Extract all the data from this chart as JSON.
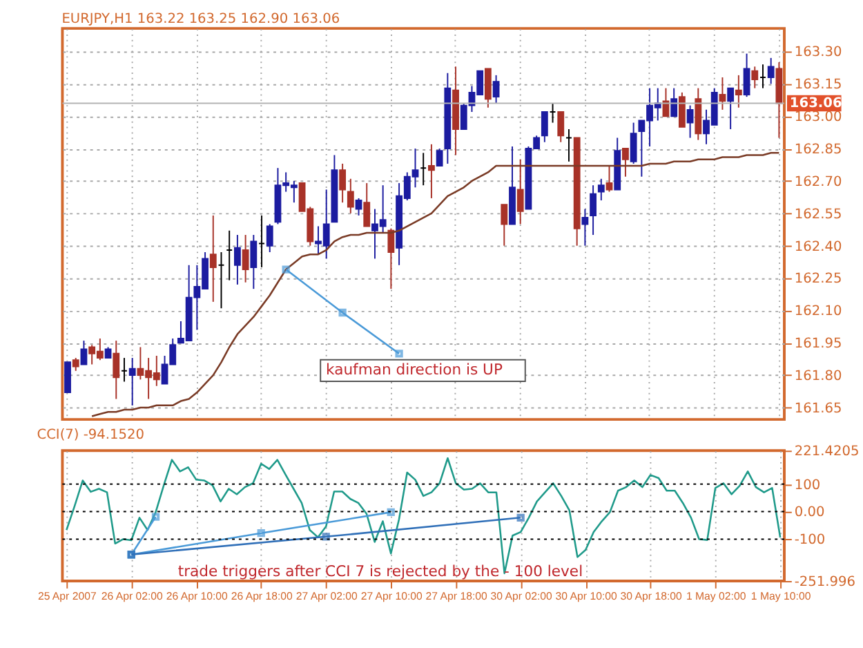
{
  "chart_data": [
    {
      "type": "candlestick",
      "title": "EURJPY,H1  163.22 163.25 162.90 163.06",
      "categories": [
        null,
        null,
        null,
        null,
        null,
        null,
        null,
        null,
        null,
        null,
        null,
        null,
        null,
        null,
        null,
        null,
        null,
        null,
        null,
        null,
        null,
        null,
        null,
        null,
        null,
        null,
        null,
        null,
        null,
        null,
        null,
        null,
        null,
        null,
        null,
        null,
        null,
        null,
        null,
        null,
        null,
        null,
        null,
        null,
        null,
        null,
        null,
        null,
        null,
        null,
        null,
        null,
        null,
        null,
        null,
        null,
        null,
        null,
        null,
        null,
        null,
        null,
        null,
        null,
        null,
        null,
        null,
        null,
        null,
        null,
        null,
        null,
        null,
        null,
        null,
        null,
        null,
        null,
        null,
        null,
        null,
        null,
        null,
        null,
        null,
        null,
        null,
        null,
        null
      ],
      "ohlc": [
        [
          161.72,
          161.86,
          161.72,
          161.86
        ],
        [
          161.87,
          161.88,
          161.82,
          161.84
        ],
        [
          161.85,
          161.96,
          161.85,
          161.92
        ],
        [
          161.93,
          161.94,
          161.85,
          161.9
        ],
        [
          161.91,
          161.97,
          161.87,
          161.88
        ],
        [
          161.88,
          161.93,
          161.88,
          161.92
        ],
        [
          161.9,
          161.96,
          161.69,
          161.79
        ],
        [
          161.82,
          161.88,
          161.77,
          161.82
        ],
        [
          161.8,
          161.88,
          161.66,
          161.83
        ],
        [
          161.83,
          161.93,
          161.78,
          161.8
        ],
        [
          161.82,
          161.88,
          161.69,
          161.79
        ],
        [
          161.81,
          161.89,
          161.75,
          161.78
        ],
        [
          161.76,
          161.89,
          161.76,
          161.85
        ],
        [
          161.85,
          161.97,
          161.85,
          161.94
        ],
        [
          161.95,
          162.05,
          161.95,
          161.97
        ],
        [
          161.96,
          162.31,
          161.96,
          162.16
        ],
        [
          162.16,
          162.31,
          162.01,
          162.21
        ],
        [
          162.2,
          162.37,
          162.2,
          162.34
        ],
        [
          162.36,
          162.54,
          162.14,
          162.3
        ],
        [
          162.31,
          162.37,
          162.11,
          162.31
        ],
        [
          162.38,
          162.47,
          162.24,
          162.38
        ],
        [
          162.31,
          162.45,
          162.22,
          162.39
        ],
        [
          162.38,
          162.45,
          162.23,
          162.29
        ],
        [
          162.3,
          162.45,
          162.2,
          162.42
        ],
        [
          162.41,
          162.54,
          162.3,
          162.41
        ],
        [
          162.4,
          162.5,
          162.37,
          162.49
        ],
        [
          162.51,
          162.76,
          162.5,
          162.68
        ],
        [
          162.68,
          162.74,
          162.65,
          162.69
        ],
        [
          162.67,
          162.7,
          162.6,
          162.68
        ],
        [
          162.69,
          162.69,
          162.56,
          162.56
        ],
        [
          162.57,
          162.58,
          162.4,
          162.42
        ],
        [
          162.41,
          162.49,
          162.36,
          162.42
        ],
        [
          162.4,
          162.66,
          162.34,
          162.5
        ],
        [
          162.51,
          162.82,
          162.51,
          162.75
        ],
        [
          162.75,
          162.78,
          162.6,
          162.66
        ],
        [
          162.65,
          162.71,
          162.55,
          162.58
        ],
        [
          162.57,
          162.62,
          162.54,
          162.61
        ],
        [
          162.6,
          162.69,
          162.49,
          162.49
        ],
        [
          162.47,
          162.57,
          162.34,
          162.5
        ],
        [
          162.49,
          162.68,
          162.46,
          162.52
        ],
        [
          162.47,
          162.48,
          162.2,
          162.37
        ],
        [
          162.39,
          162.69,
          162.31,
          162.63
        ],
        [
          162.62,
          162.74,
          162.61,
          162.72
        ],
        [
          162.72,
          162.85,
          162.67,
          162.75
        ],
        [
          162.76,
          162.83,
          162.68,
          162.76
        ],
        [
          162.77,
          162.87,
          162.62,
          162.75
        ],
        [
          162.77,
          162.85,
          162.77,
          162.84
        ],
        [
          162.85,
          163.2,
          162.78,
          163.13
        ],
        [
          163.12,
          163.23,
          162.82,
          162.94
        ],
        [
          162.94,
          163.06,
          162.94,
          163.05
        ],
        [
          163.05,
          163.14,
          163.02,
          163.11
        ],
        [
          163.1,
          163.21,
          163.1,
          163.21
        ],
        [
          163.22,
          163.22,
          163.04,
          163.08
        ],
        [
          163.09,
          163.19,
          163.06,
          163.16
        ],
        [
          162.59,
          162.59,
          162.4,
          162.5
        ],
        [
          162.5,
          162.86,
          162.5,
          162.67
        ],
        [
          162.66,
          162.8,
          162.5,
          162.56
        ],
        [
          162.57,
          162.86,
          162.57,
          162.85
        ],
        [
          162.85,
          162.91,
          162.85,
          162.9
        ],
        [
          162.91,
          163.02,
          162.88,
          163.02
        ],
        [
          163.02,
          163.06,
          162.97,
          163.02
        ],
        [
          163.02,
          163.02,
          162.88,
          162.91
        ],
        [
          162.9,
          162.94,
          162.79,
          162.9
        ],
        [
          162.9,
          162.9,
          162.4,
          162.48
        ],
        [
          162.5,
          162.57,
          162.4,
          162.53
        ],
        [
          162.54,
          162.68,
          162.45,
          162.64
        ],
        [
          162.65,
          162.71,
          162.61,
          162.68
        ],
        [
          162.69,
          162.77,
          162.65,
          162.66
        ],
        [
          162.66,
          162.9,
          162.66,
          162.84
        ],
        [
          162.85,
          162.85,
          162.72,
          162.8
        ],
        [
          162.79,
          162.97,
          162.78,
          162.92
        ],
        [
          162.93,
          162.98,
          162.72,
          162.98
        ],
        [
          162.98,
          163.13,
          162.86,
          163.05
        ],
        [
          163.04,
          163.13,
          162.98,
          163.06
        ],
        [
          163.07,
          163.13,
          163.0,
          163.0
        ],
        [
          163.0,
          163.13,
          163.0,
          163.08
        ],
        [
          163.09,
          163.11,
          162.95,
          162.95
        ],
        [
          162.97,
          163.05,
          162.9,
          163.03
        ],
        [
          163.08,
          163.13,
          162.89,
          162.92
        ],
        [
          162.92,
          163.03,
          162.87,
          162.98
        ],
        [
          162.96,
          163.13,
          162.96,
          163.11
        ],
        [
          163.1,
          163.18,
          163.03,
          163.07
        ],
        [
          163.07,
          163.13,
          162.94,
          163.13
        ],
        [
          163.12,
          163.19,
          163.04,
          163.1
        ],
        [
          163.1,
          163.29,
          163.09,
          163.22
        ],
        [
          163.21,
          163.23,
          163.13,
          163.17
        ],
        [
          163.18,
          163.24,
          163.13,
          163.18
        ],
        [
          163.18,
          163.27,
          163.15,
          163.23
        ],
        [
          163.22,
          163.25,
          162.9,
          163.06
        ]
      ],
      "colors": [
        "#1c1ca0",
        "#a83228",
        "#1c1ca0",
        "#a83228",
        "#a83228",
        "#1c1ca0",
        "#a83228",
        "#000000",
        "#1c1ca0",
        "#a83228",
        "#a83228",
        "#a83228",
        "#1c1ca0",
        "#1c1ca0",
        "#1c1ca0",
        "#1c1ca0",
        "#1c1ca0",
        "#1c1ca0",
        "#a83228",
        "#000000",
        "#000000",
        "#1c1ca0",
        "#a83228",
        "#1c1ca0",
        "#000000",
        "#1c1ca0",
        "#1c1ca0",
        "#1c1ca0",
        "#1c1ca0",
        "#a83228",
        "#a83228",
        "#1c1ca0",
        "#1c1ca0",
        "#1c1ca0",
        "#a83228",
        "#a83228",
        "#1c1ca0",
        "#a83228",
        "#1c1ca0",
        "#1c1ca0",
        "#a83228",
        "#1c1ca0",
        "#1c1ca0",
        "#1c1ca0",
        "#000000",
        "#a83228",
        "#1c1ca0",
        "#1c1ca0",
        "#a83228",
        "#1c1ca0",
        "#1c1ca0",
        "#1c1ca0",
        "#a83228",
        "#1c1ca0",
        "#a83228",
        "#1c1ca0",
        "#a83228",
        "#1c1ca0",
        "#1c1ca0",
        "#1c1ca0",
        "#000000",
        "#a83228",
        "#000000",
        "#a83228",
        "#1c1ca0",
        "#1c1ca0",
        "#1c1ca0",
        "#a83228",
        "#1c1ca0",
        "#a83228",
        "#1c1ca0",
        "#1c1ca0",
        "#1c1ca0",
        "#1c1ca0",
        "#a83228",
        "#1c1ca0",
        "#a83228",
        "#1c1ca0",
        "#a83228",
        "#1c1ca0",
        "#1c1ca0",
        "#a83228",
        "#1c1ca0",
        "#a83228",
        "#1c1ca0",
        "#a83228",
        "#000000",
        "#1c1ca0",
        "#a83228"
      ],
      "series": [
        {
          "type": "line",
          "color": "#7a3b26",
          "values": [
            null,
            null,
            null,
            161.61,
            161.62,
            161.63,
            161.63,
            161.64,
            161.64,
            161.65,
            161.65,
            161.66,
            161.66,
            161.66,
            161.68,
            161.69,
            161.72,
            161.76,
            161.8,
            161.86,
            161.93,
            161.99,
            162.03,
            162.07,
            162.12,
            162.17,
            162.23,
            162.29,
            162.32,
            162.35,
            162.36,
            162.36,
            162.38,
            162.42,
            162.44,
            162.45,
            162.45,
            162.46,
            162.46,
            162.46,
            162.46,
            162.47,
            162.49,
            162.51,
            162.53,
            162.55,
            162.59,
            162.63,
            162.65,
            162.67,
            162.7,
            162.72,
            162.74,
            162.77,
            162.77,
            162.77,
            162.77,
            162.77,
            162.77,
            162.77,
            162.77,
            162.77,
            162.77,
            162.77,
            162.77,
            162.77,
            162.77,
            162.77,
            162.77,
            162.77,
            162.77,
            162.77,
            162.78,
            162.78,
            162.78,
            162.79,
            162.79,
            162.79,
            162.8,
            162.8,
            162.8,
            162.81,
            162.81,
            162.81,
            162.82,
            162.82,
            162.82,
            162.83,
            162.83
          ]
        },
        {
          "type": "line",
          "color": "#4a9ad8",
          "marker": "square",
          "values": [
            null,
            null,
            null,
            null,
            null,
            null,
            null,
            null,
            null,
            null,
            null,
            null,
            null,
            null,
            null,
            null,
            null,
            null,
            null,
            null,
            null,
            null,
            null,
            null,
            null,
            null,
            null,
            162.29,
            null,
            null,
            null,
            null,
            null,
            null,
            162.09,
            null,
            null,
            null,
            null,
            null,
            null,
            161.9,
            null,
            null,
            null,
            null,
            null,
            null,
            null,
            null,
            null,
            null,
            null,
            null,
            null,
            null,
            null,
            null,
            null,
            null,
            null,
            null,
            null,
            null,
            null,
            null,
            null,
            null,
            null,
            null,
            null,
            null,
            null,
            null,
            null,
            null,
            null,
            null,
            null,
            null,
            null,
            null,
            null,
            null,
            null,
            null,
            null,
            null,
            null
          ]
        }
      ],
      "ylim": [
        161.595,
        163.407
      ],
      "yticks": [
        {
          "value": 161.65,
          "label": "161.65"
        },
        {
          "value": 161.8,
          "label": "161.80"
        },
        {
          "value": 161.95,
          "label": "161.95"
        },
        {
          "value": 162.1,
          "label": "162.10"
        },
        {
          "value": 162.25,
          "label": "162.25"
        },
        {
          "value": 162.4,
          "label": "162.40"
        },
        {
          "value": 162.55,
          "label": "162.55"
        },
        {
          "value": 162.7,
          "label": "162.70"
        },
        {
          "value": 162.85,
          "label": "162.85"
        },
        {
          "value": 163.0,
          "label": "163.00"
        },
        {
          "value": 163.15,
          "label": "163.15"
        },
        {
          "value": 163.3,
          "label": "163.30"
        }
      ],
      "ref_lines": [
        {
          "axis": "y",
          "value": 163.06,
          "label": "163.06",
          "color": "#b4b4b4"
        }
      ],
      "annotations": [
        "kaufman direction is UP"
      ],
      "grid": true,
      "tick_labels": "y"
    },
    {
      "type": "line",
      "title": "CCI(7) -94.1520",
      "categories": [
        "25 Apr 2007",
        null,
        null,
        null,
        null,
        null,
        null,
        null,
        "26 Apr 02:00",
        null,
        null,
        null,
        null,
        null,
        null,
        null,
        "26 Apr 10:00",
        null,
        null,
        null,
        null,
        null,
        null,
        null,
        "26 Apr 18:00",
        null,
        null,
        null,
        null,
        null,
        null,
        null,
        "27 Apr 02:00",
        null,
        null,
        null,
        null,
        null,
        null,
        null,
        "27 Apr 10:00",
        null,
        null,
        null,
        null,
        null,
        null,
        null,
        "27 Apr 18:00",
        null,
        null,
        null,
        null,
        null,
        null,
        null,
        "30 Apr 02:00",
        null,
        null,
        null,
        null,
        null,
        null,
        null,
        "30 Apr 10:00",
        null,
        null,
        null,
        null,
        null,
        null,
        null,
        "30 Apr 18:00",
        null,
        null,
        null,
        null,
        null,
        null,
        null,
        "1 May 02:00",
        null,
        null,
        null,
        null,
        null,
        null,
        null,
        "1 May 10:00"
      ],
      "series": [
        {
          "color": "#1f9a8a",
          "values": [
            -67,
            20,
            113,
            72,
            83,
            70,
            -116,
            -100,
            -104,
            -22,
            -67,
            -2,
            96,
            188,
            146,
            161,
            116,
            113,
            96,
            37,
            83,
            63,
            89,
            103,
            174,
            155,
            188,
            135,
            83,
            31,
            -67,
            -93,
            -54,
            73,
            73,
            46,
            31,
            -8,
            -110,
            -35,
            -152,
            -28,
            142,
            116,
            57,
            70,
            103,
            194,
            103,
            80,
            83,
            103,
            70,
            70,
            -224,
            -87,
            -74,
            -22,
            37,
            70,
            103,
            57,
            5,
            -165,
            -139,
            -74,
            -35,
            -2,
            76,
            89,
            113,
            89,
            133,
            122,
            76,
            76,
            31,
            -22,
            -100,
            -103,
            86,
            103,
            63,
            94,
            146,
            89,
            70,
            86,
            -94.152
          ]
        },
        {
          "color": "#4a9ad8",
          "marker": "square",
          "values": [
            null,
            null,
            null,
            null,
            null,
            null,
            null,
            null,
            -156,
            null,
            null,
            -19,
            null,
            null,
            null,
            null,
            null,
            null,
            null,
            null,
            null,
            null,
            null,
            null,
            null,
            null,
            null,
            null,
            null,
            null,
            null,
            null,
            null,
            null,
            null,
            null,
            null,
            null,
            null,
            null,
            null,
            null,
            null,
            null,
            null,
            null,
            null,
            null,
            null,
            null,
            null,
            null,
            null,
            null,
            null,
            null,
            null,
            null,
            null,
            null,
            null,
            null,
            null,
            null,
            null,
            null,
            null,
            null,
            null,
            null,
            null,
            null,
            null,
            null,
            null,
            null,
            null,
            null,
            null,
            null,
            null,
            null,
            null,
            null,
            null,
            null,
            null,
            null,
            null
          ]
        },
        {
          "color": "#4a9ad8",
          "marker": "square",
          "values": [
            null,
            null,
            null,
            null,
            null,
            null,
            null,
            null,
            -156,
            null,
            null,
            null,
            null,
            null,
            null,
            null,
            null,
            null,
            null,
            null,
            null,
            null,
            null,
            null,
            -78,
            null,
            null,
            null,
            null,
            null,
            null,
            null,
            null,
            null,
            null,
            null,
            null,
            null,
            null,
            null,
            -2,
            null,
            null,
            null,
            null,
            null,
            null,
            null,
            null,
            null,
            null,
            null,
            null,
            null,
            null,
            null,
            null,
            null,
            null,
            null,
            null,
            null,
            null,
            null,
            null,
            null,
            null,
            null,
            null,
            null,
            null,
            null,
            null,
            null,
            null,
            null,
            null,
            null,
            null,
            null,
            null,
            null,
            null,
            null,
            null,
            null,
            null,
            null,
            null
          ]
        },
        {
          "color": "#2f6fb8",
          "marker": "square",
          "values": [
            null,
            null,
            null,
            null,
            null,
            null,
            null,
            null,
            -156,
            null,
            null,
            null,
            null,
            null,
            null,
            null,
            null,
            null,
            null,
            null,
            null,
            null,
            null,
            null,
            null,
            null,
            null,
            null,
            null,
            null,
            null,
            null,
            -91,
            null,
            null,
            null,
            null,
            null,
            null,
            null,
            null,
            null,
            null,
            null,
            null,
            null,
            null,
            null,
            null,
            null,
            null,
            null,
            null,
            null,
            null,
            null,
            -22,
            null,
            null,
            null,
            null,
            null,
            null,
            null,
            null,
            null,
            null,
            null,
            null,
            null,
            null,
            null,
            null,
            null,
            null,
            null,
            null,
            null,
            null,
            null,
            null,
            null,
            null,
            null,
            null,
            null,
            null,
            null,
            null
          ]
        }
      ],
      "ylim": [
        -251.996,
        221.4205
      ],
      "yticks": [
        {
          "value": 221.4205,
          "label": "221.4205"
        },
        {
          "value": 100,
          "label": "100"
        },
        {
          "value": 0,
          "label": "0.00"
        },
        {
          "value": -100,
          "label": "-100"
        },
        {
          "value": -251.996,
          "label": "-251.996"
        }
      ],
      "ref_lines": [
        {
          "axis": "y",
          "value": 100,
          "color": "#000000",
          "line_style": "dotted"
        },
        {
          "axis": "y",
          "value": 0,
          "color": "#000000",
          "line_style": "dotted"
        },
        {
          "axis": "y",
          "value": -100,
          "color": "#000000",
          "line_style": "dotted"
        }
      ],
      "annotations": [
        "trade triggers after CCI 7 is rejected by the - 100 level"
      ],
      "grid": "x"
    }
  ]
}
